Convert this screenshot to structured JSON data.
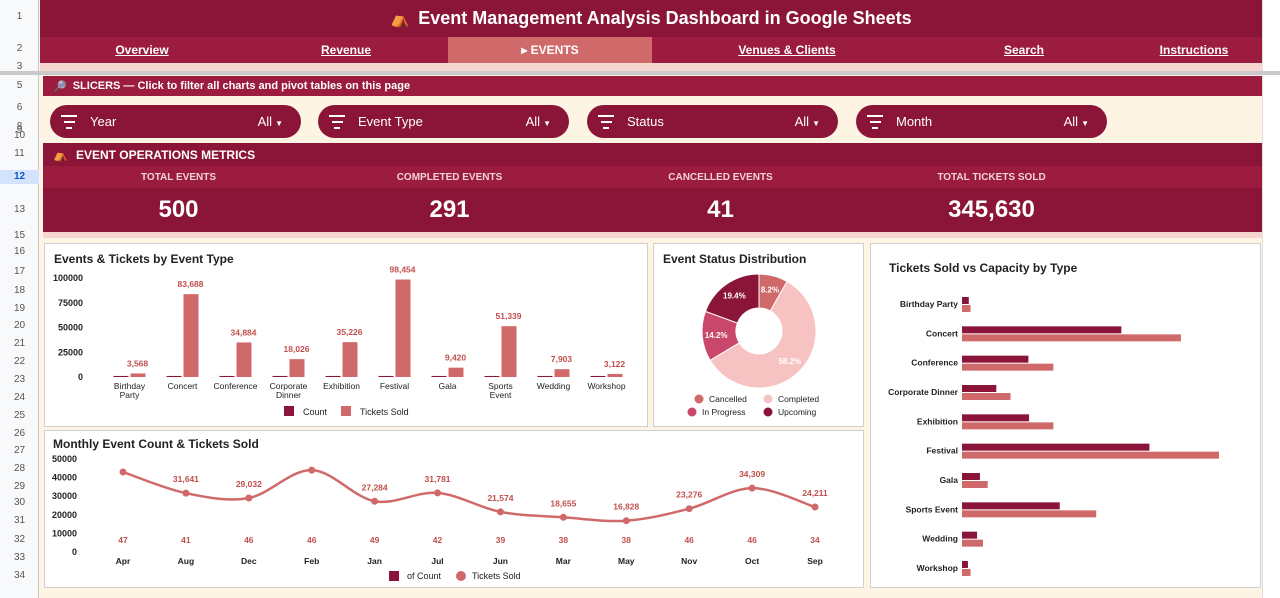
{
  "title": "Event Management Analysis Dashboard in Google Sheets",
  "nav": [
    {
      "label": "Overview",
      "active": false
    },
    {
      "label": "Revenue",
      "active": false
    },
    {
      "label": "▸ EVENTS",
      "active": true
    },
    {
      "label": "Venues & Clients",
      "active": false
    },
    {
      "label": "Search",
      "active": false
    },
    {
      "label": "Instructions",
      "active": false
    }
  ],
  "row_numbers": [
    "1",
    "2",
    "3",
    "5",
    "6",
    "8",
    "9",
    "10",
    "11",
    "12",
    "13",
    "15",
    "16",
    "17",
    "18",
    "19",
    "20",
    "21",
    "22",
    "23",
    "24",
    "25",
    "26",
    "27",
    "28",
    "29",
    "30",
    "31",
    "32",
    "33",
    "34"
  ],
  "slicers_header": "SLICERS — Click to filter all charts and pivot tables on this page",
  "slicers": [
    {
      "label": "Year",
      "value": "All"
    },
    {
      "label": "Event Type",
      "value": "All"
    },
    {
      "label": "Status",
      "value": "All"
    },
    {
      "label": "Month",
      "value": "All"
    }
  ],
  "metrics_header": "EVENT OPERATIONS METRICS",
  "kpis": [
    {
      "label": "TOTAL EVENTS",
      "value": "500"
    },
    {
      "label": "COMPLETED EVENTS",
      "value": "291"
    },
    {
      "label": "CANCELLED EVENTS",
      "value": "41"
    },
    {
      "label": "TOTAL TICKETS SOLD",
      "value": "345,630"
    }
  ],
  "colors": {
    "primary": "#8a1538",
    "secondary": "#9b1c3f",
    "accent": "#d06a6a",
    "light": "#f6d4cf",
    "bg": "#fdf4e3"
  },
  "chart_data": [
    {
      "type": "bar",
      "title": "Events & Tickets by Event Type",
      "categories": [
        "Birthday Party",
        "Concert",
        "Conference",
        "Corporate Dinner",
        "Exhibition",
        "Festival",
        "Gala",
        "Sports Event",
        "Wedding",
        "Workshop"
      ],
      "series": [
        {
          "name": "Count",
          "values": [
            45,
            57,
            49,
            50,
            55,
            50,
            52,
            50,
            46,
            46
          ],
          "color": "#8a1538"
        },
        {
          "name": "Tickets Sold",
          "values": [
            3568,
            83688,
            34884,
            18026,
            35226,
            98454,
            9420,
            51339,
            7903,
            3122
          ],
          "color": "#d06a6a"
        }
      ],
      "y_ticks": [
        "100000",
        "75000",
        "50000",
        "25000",
        "0"
      ],
      "ylim": [
        0,
        100000
      ],
      "legend": "bottom"
    },
    {
      "type": "pie",
      "title": "Event Status Distribution",
      "slices": [
        {
          "name": "Cancelled",
          "value": 8.2,
          "label": "8.2%",
          "color": "#d06a6a"
        },
        {
          "name": "Completed",
          "value": 58.2,
          "label": "58.2%",
          "color": "#f6c2c2"
        },
        {
          "name": "In Progress",
          "value": 14.2,
          "label": "14.2%",
          "color": "#c8476a"
        },
        {
          "name": "Upcoming",
          "value": 19.4,
          "label": "19.4%",
          "color": "#8a1538"
        }
      ],
      "legend": "bottom"
    },
    {
      "type": "line",
      "title": "Monthly Event Count & Tickets Sold",
      "categories": [
        "Apr",
        "Aug",
        "Dec",
        "Feb",
        "Jan",
        "Jul",
        "Jun",
        "Mar",
        "May",
        "Nov",
        "Oct",
        "Sep"
      ],
      "series": [
        {
          "name": "of Count",
          "values": [
            47,
            41,
            46,
            46,
            49,
            42,
            39,
            38,
            38,
            46,
            46,
            34
          ],
          "color": "#8a1538"
        },
        {
          "name": "Tickets Sold",
          "values": [
            43000,
            31641,
            29032,
            44000,
            27284,
            31781,
            21574,
            18655,
            16828,
            23276,
            34309,
            24211
          ],
          "labels": [
            "",
            "31,641",
            "29,032",
            "",
            "27,284",
            "31,781",
            "21,574",
            "18,655",
            "16,828",
            "23,276",
            "34,309",
            "24,211"
          ],
          "color": "#d06a6a"
        }
      ],
      "y_ticks": [
        "50000",
        "40000",
        "30000",
        "20000",
        "10000",
        "0"
      ],
      "ylim": [
        0,
        50000
      ],
      "legend": "bottom"
    },
    {
      "type": "bar",
      "title": "Tickets Sold vs Capacity by Type",
      "orientation": "horizontal",
      "categories": [
        "Birthday Party",
        "Concert",
        "Conference",
        "Corporate Dinner",
        "Exhibition",
        "Festival",
        "Gala",
        "Sports Event",
        "Wedding",
        "Workshop"
      ],
      "series": [
        {
          "name": "Tickets Sold",
          "values": [
            3568,
            83688,
            34884,
            18026,
            35226,
            98454,
            9420,
            51339,
            7903,
            3122
          ],
          "color": "#8a1538"
        },
        {
          "name": "Capacity",
          "values": [
            4500,
            115000,
            48000,
            25500,
            48000,
            135000,
            13500,
            70500,
            11000,
            4500
          ],
          "color": "#d06a6a"
        }
      ]
    }
  ]
}
